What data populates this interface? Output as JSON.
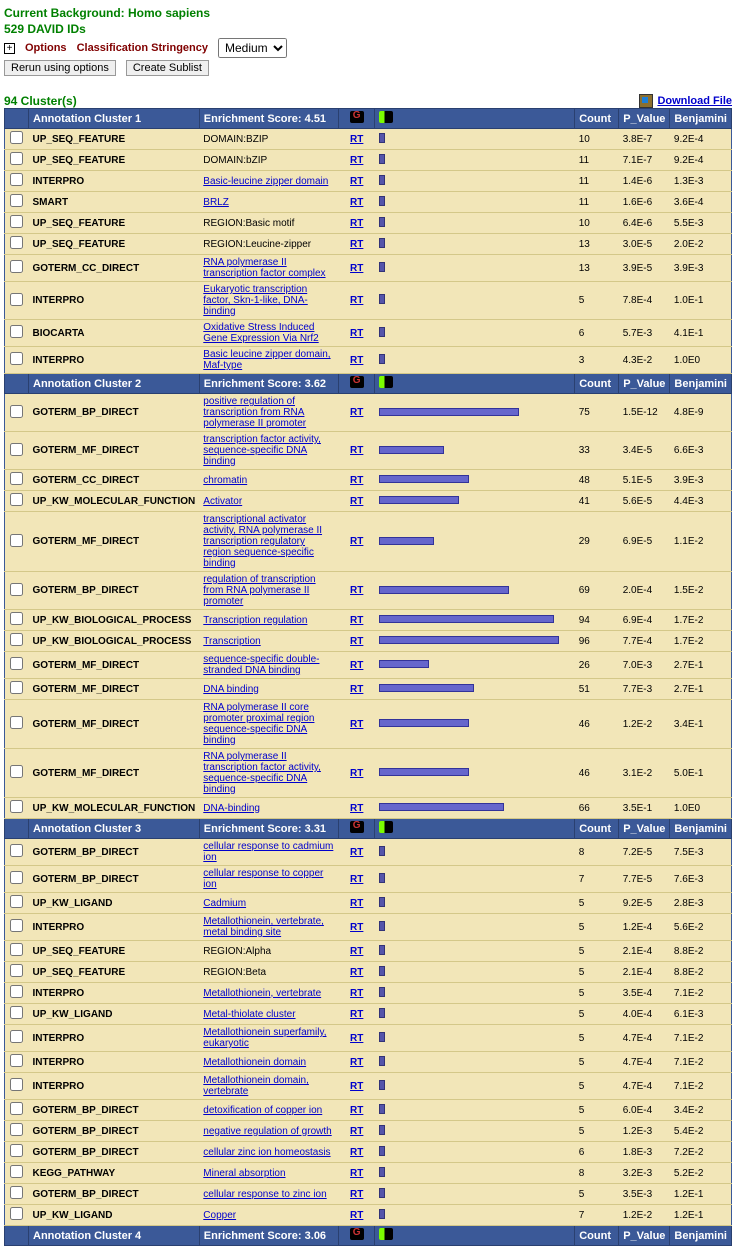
{
  "header": {
    "background_line": "Current Background: Homo sapiens",
    "id_line": "529 DAVID IDs",
    "options_label": "Options",
    "stringency_label": "Classification Stringency",
    "stringency_value": "Medium",
    "rerun_btn": "Rerun using options",
    "sublist_btn": "Create Sublist",
    "cluster_count": "94 Cluster(s)",
    "download": "Download File"
  },
  "cols": {
    "count": "Count",
    "pvalue": "P_Value",
    "benjamini": "Benjamini"
  },
  "rt": "RT",
  "clusters": [
    {
      "title": "Annotation Cluster 1",
      "score_label": "Enrichment Score: 4.51",
      "rows": [
        {
          "cat": "UP_SEQ_FEATURE",
          "term": "DOMAIN:BZIP",
          "link": false,
          "bar": 3,
          "count": "10",
          "p": "3.8E-7",
          "b": "9.2E-4"
        },
        {
          "cat": "UP_SEQ_FEATURE",
          "term": "DOMAIN:bZIP",
          "link": false,
          "bar": 3,
          "count": "11",
          "p": "7.1E-7",
          "b": "9.2E-4"
        },
        {
          "cat": "INTERPRO",
          "term": "Basic-leucine zipper domain",
          "link": true,
          "bar": 3,
          "count": "11",
          "p": "1.4E-6",
          "b": "1.3E-3"
        },
        {
          "cat": "SMART",
          "term": "BRLZ",
          "link": true,
          "bar": 3,
          "count": "11",
          "p": "1.6E-6",
          "b": "3.6E-4"
        },
        {
          "cat": "UP_SEQ_FEATURE",
          "term": "REGION:Basic motif",
          "link": false,
          "bar": 3,
          "count": "10",
          "p": "6.4E-6",
          "b": "5.5E-3"
        },
        {
          "cat": "UP_SEQ_FEATURE",
          "term": "REGION:Leucine-zipper",
          "link": false,
          "bar": 3,
          "count": "13",
          "p": "3.0E-5",
          "b": "2.0E-2"
        },
        {
          "cat": "GOTERM_CC_DIRECT",
          "term": "RNA polymerase II transcription factor complex",
          "link": true,
          "bar": 3,
          "count": "13",
          "p": "3.9E-5",
          "b": "3.9E-3"
        },
        {
          "cat": "INTERPRO",
          "term": "Eukaryotic transcription factor, Skn-1-like, DNA-binding",
          "link": true,
          "bar": 2,
          "count": "5",
          "p": "7.8E-4",
          "b": "1.0E-1"
        },
        {
          "cat": "BIOCARTA",
          "term": "Oxidative Stress Induced Gene Expression Via Nrf2",
          "link": true,
          "bar": 2,
          "count": "6",
          "p": "5.7E-3",
          "b": "4.1E-1"
        },
        {
          "cat": "INTERPRO",
          "term": "Basic leucine zipper domain, Maf-type",
          "link": true,
          "bar": 2,
          "count": "3",
          "p": "4.3E-2",
          "b": "1.0E0"
        }
      ]
    },
    {
      "title": "Annotation Cluster 2",
      "score_label": "Enrichment Score: 3.62",
      "rows": [
        {
          "cat": "GOTERM_BP_DIRECT",
          "term": "positive regulation of transcription from RNA polymerase II promoter",
          "link": true,
          "bar": 28,
          "count": "75",
          "p": "1.5E-12",
          "b": "4.8E-9"
        },
        {
          "cat": "GOTERM_MF_DIRECT",
          "term": "transcription factor activity, sequence-specific DNA binding",
          "link": true,
          "bar": 13,
          "count": "33",
          "p": "3.4E-5",
          "b": "6.6E-3"
        },
        {
          "cat": "GOTERM_CC_DIRECT",
          "term": "chromatin",
          "link": true,
          "bar": 18,
          "count": "48",
          "p": "5.1E-5",
          "b": "3.9E-3"
        },
        {
          "cat": "UP_KW_MOLECULAR_FUNCTION",
          "term": "Activator",
          "link": true,
          "bar": 16,
          "count": "41",
          "p": "5.6E-5",
          "b": "4.4E-3"
        },
        {
          "cat": "GOTERM_MF_DIRECT",
          "term": "transcriptional activator activity, RNA polymerase II transcription regulatory region sequence-specific binding",
          "link": true,
          "bar": 11,
          "count": "29",
          "p": "6.9E-5",
          "b": "1.1E-2"
        },
        {
          "cat": "GOTERM_BP_DIRECT",
          "term": "regulation of transcription from RNA polymerase II promoter",
          "link": true,
          "bar": 26,
          "count": "69",
          "p": "2.0E-4",
          "b": "1.5E-2"
        },
        {
          "cat": "UP_KW_BIOLOGICAL_PROCESS",
          "term": "Transcription regulation",
          "link": true,
          "bar": 35,
          "count": "94",
          "p": "6.9E-4",
          "b": "1.7E-2"
        },
        {
          "cat": "UP_KW_BIOLOGICAL_PROCESS",
          "term": "Transcription",
          "link": true,
          "bar": 36,
          "count": "96",
          "p": "7.7E-4",
          "b": "1.7E-2"
        },
        {
          "cat": "GOTERM_MF_DIRECT",
          "term": "sequence-specific double-stranded DNA binding",
          "link": true,
          "bar": 10,
          "count": "26",
          "p": "7.0E-3",
          "b": "2.7E-1"
        },
        {
          "cat": "GOTERM_MF_DIRECT",
          "term": "DNA binding",
          "link": true,
          "bar": 19,
          "count": "51",
          "p": "7.7E-3",
          "b": "2.7E-1"
        },
        {
          "cat": "GOTERM_MF_DIRECT",
          "term": "RNA polymerase II core promoter proximal region sequence-specific DNA binding",
          "link": true,
          "bar": 18,
          "count": "46",
          "p": "1.2E-2",
          "b": "3.4E-1"
        },
        {
          "cat": "GOTERM_MF_DIRECT",
          "term": "RNA polymerase II transcription factor activity, sequence-specific DNA binding",
          "link": true,
          "bar": 18,
          "count": "46",
          "p": "3.1E-2",
          "b": "5.0E-1"
        },
        {
          "cat": "UP_KW_MOLECULAR_FUNCTION",
          "term": "DNA-binding",
          "link": true,
          "bar": 25,
          "count": "66",
          "p": "3.5E-1",
          "b": "1.0E0"
        }
      ]
    },
    {
      "title": "Annotation Cluster 3",
      "score_label": "Enrichment Score: 3.31",
      "rows": [
        {
          "cat": "GOTERM_BP_DIRECT",
          "term": "cellular response to cadmium ion",
          "link": true,
          "bar": 3,
          "count": "8",
          "p": "7.2E-5",
          "b": "7.5E-3"
        },
        {
          "cat": "GOTERM_BP_DIRECT",
          "term": "cellular response to copper ion",
          "link": true,
          "bar": 3,
          "count": "7",
          "p": "7.7E-5",
          "b": "7.6E-3"
        },
        {
          "cat": "UP_KW_LIGAND",
          "term": "Cadmium",
          "link": true,
          "bar": 2,
          "count": "5",
          "p": "9.2E-5",
          "b": "2.8E-3"
        },
        {
          "cat": "INTERPRO",
          "term": "Metallothionein, vertebrate, metal binding site",
          "link": true,
          "bar": 2,
          "count": "5",
          "p": "1.2E-4",
          "b": "5.6E-2"
        },
        {
          "cat": "UP_SEQ_FEATURE",
          "term": "REGION:Alpha",
          "link": false,
          "bar": 2,
          "count": "5",
          "p": "2.1E-4",
          "b": "8.8E-2"
        },
        {
          "cat": "UP_SEQ_FEATURE",
          "term": "REGION:Beta",
          "link": false,
          "bar": 2,
          "count": "5",
          "p": "2.1E-4",
          "b": "8.8E-2"
        },
        {
          "cat": "INTERPRO",
          "term": "Metallothionein, vertebrate",
          "link": true,
          "bar": 2,
          "count": "5",
          "p": "3.5E-4",
          "b": "7.1E-2"
        },
        {
          "cat": "UP_KW_LIGAND",
          "term": "Metal-thiolate cluster",
          "link": true,
          "bar": 2,
          "count": "5",
          "p": "4.0E-4",
          "b": "6.1E-3"
        },
        {
          "cat": "INTERPRO",
          "term": "Metallothionein superfamily, eukaryotic",
          "link": true,
          "bar": 2,
          "count": "5",
          "p": "4.7E-4",
          "b": "7.1E-2"
        },
        {
          "cat": "INTERPRO",
          "term": "Metallothionein domain",
          "link": true,
          "bar": 2,
          "count": "5",
          "p": "4.7E-4",
          "b": "7.1E-2"
        },
        {
          "cat": "INTERPRO",
          "term": "Metallothionein domain, vertebrate",
          "link": true,
          "bar": 2,
          "count": "5",
          "p": "4.7E-4",
          "b": "7.1E-2"
        },
        {
          "cat": "GOTERM_BP_DIRECT",
          "term": "detoxification of copper ion",
          "link": true,
          "bar": 2,
          "count": "5",
          "p": "6.0E-4",
          "b": "3.4E-2"
        },
        {
          "cat": "GOTERM_BP_DIRECT",
          "term": "negative regulation of growth",
          "link": true,
          "bar": 2,
          "count": "5",
          "p": "1.2E-3",
          "b": "5.4E-2"
        },
        {
          "cat": "GOTERM_BP_DIRECT",
          "term": "cellular zinc ion homeostasis",
          "link": true,
          "bar": 2,
          "count": "6",
          "p": "1.8E-3",
          "b": "7.2E-2"
        },
        {
          "cat": "KEGG_PATHWAY",
          "term": "Mineral absorption",
          "link": true,
          "bar": 3,
          "count": "8",
          "p": "3.2E-3",
          "b": "5.2E-2"
        },
        {
          "cat": "GOTERM_BP_DIRECT",
          "term": "cellular response to zinc ion",
          "link": true,
          "bar": 2,
          "count": "5",
          "p": "3.5E-3",
          "b": "1.2E-1"
        },
        {
          "cat": "UP_KW_LIGAND",
          "term": "Copper",
          "link": true,
          "bar": 3,
          "count": "7",
          "p": "1.2E-2",
          "b": "1.2E-1"
        }
      ]
    },
    {
      "title": "Annotation Cluster 4",
      "score_label": "Enrichment Score: 3.06",
      "rows": []
    }
  ]
}
